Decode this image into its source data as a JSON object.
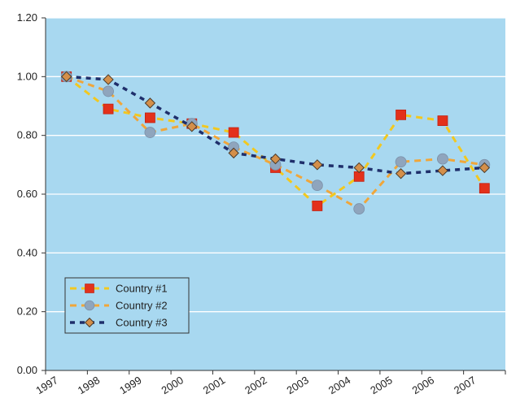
{
  "colors": {
    "plot_background": "#a8d8f0",
    "gridline": "#ffffff",
    "axis": "#333333",
    "country1_line": "#f2c81f",
    "country1_marker": "#e3311b",
    "country2_line": "#f0a63a",
    "country2_marker": "#8fa5bd",
    "country3_line": "#1f2f6b",
    "country3_marker": "#d48f4a"
  },
  "chart_data": {
    "type": "line",
    "title": "",
    "xlabel": "",
    "ylabel": "",
    "categories": [
      "1997",
      "1998",
      "1999",
      "2000",
      "2001",
      "2002",
      "2003",
      "2004",
      "2005",
      "2006",
      "2007"
    ],
    "y_ticks": [
      "0.00",
      "0.20",
      "0.40",
      "0.60",
      "0.80",
      "1.00",
      "1.20"
    ],
    "ylim": [
      0,
      1.2
    ],
    "grid": "horizontal",
    "legend_position": "bottom-left",
    "series": [
      {
        "name": "Country #1",
        "marker": "square",
        "line_style": "dashed",
        "values": [
          1.0,
          0.89,
          0.86,
          0.84,
          0.81,
          0.69,
          0.56,
          0.66,
          0.87,
          0.85,
          0.62
        ]
      },
      {
        "name": "Country #2",
        "marker": "circle",
        "line_style": "dashed",
        "values": [
          1.0,
          0.95,
          0.81,
          0.84,
          0.76,
          0.7,
          0.63,
          0.55,
          0.71,
          0.72,
          0.7
        ]
      },
      {
        "name": "Country #3",
        "marker": "diamond",
        "line_style": "dashed",
        "values": [
          1.0,
          0.99,
          0.91,
          0.83,
          0.74,
          0.72,
          0.7,
          0.69,
          0.67,
          0.68,
          0.69
        ]
      }
    ]
  }
}
